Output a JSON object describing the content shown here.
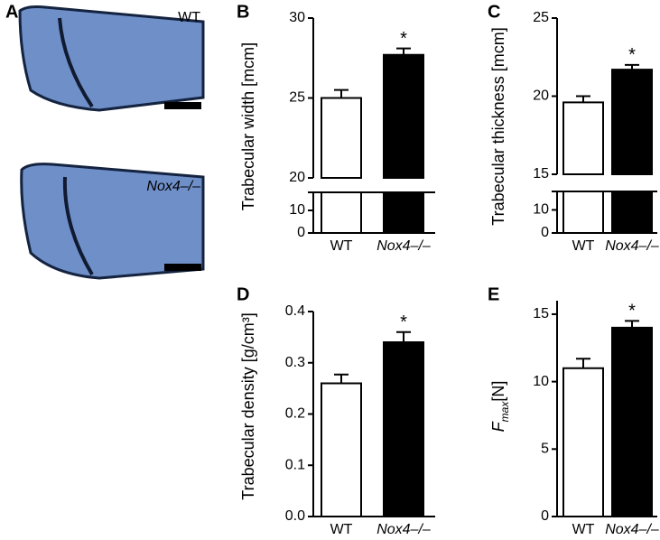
{
  "panel_a": {
    "label": "A",
    "images": [
      {
        "label": "WT"
      },
      {
        "label": "Nox4–/–"
      }
    ]
  },
  "chart_data": [
    {
      "panel": "B",
      "type": "bar",
      "y_label": "Trabecular width [mcm]",
      "categories": [
        "WT",
        "Nox4–/–"
      ],
      "values": [
        25.0,
        27.7
      ],
      "errors": [
        0.5,
        0.4
      ],
      "colors": [
        "#ffffff",
        "#000000"
      ],
      "annotations": [
        "*"
      ],
      "ylim": [
        20,
        30
      ],
      "yticks": [
        20,
        25,
        30
      ],
      "axis_break": {
        "ylim": [
          0,
          18
        ],
        "yticks": [
          0,
          10
        ]
      }
    },
    {
      "panel": "C",
      "type": "bar",
      "y_label": "Trabecular thickness [mcm]",
      "categories": [
        "WT",
        "Nox4–/–"
      ],
      "values": [
        19.6,
        21.7
      ],
      "errors": [
        0.4,
        0.3
      ],
      "colors": [
        "#ffffff",
        "#000000"
      ],
      "annotations": [
        "*"
      ],
      "ylim": [
        15,
        25
      ],
      "yticks": [
        15,
        20,
        25
      ],
      "axis_break": {
        "ylim": [
          0,
          18
        ],
        "yticks": [
          0,
          10
        ]
      }
    },
    {
      "panel": "D",
      "type": "bar",
      "y_label": "Trabecular density [g/cm³]",
      "categories": [
        "WT",
        "Nox4–/–"
      ],
      "values": [
        0.26,
        0.34
      ],
      "errors": [
        0.017,
        0.02
      ],
      "colors": [
        "#ffffff",
        "#000000"
      ],
      "annotations": [
        "*"
      ],
      "ylim": [
        0,
        0.4
      ],
      "yticks": [
        {
          "value": 0,
          "label": "0.0"
        },
        0.1,
        0.2,
        0.3,
        0.4
      ]
    },
    {
      "panel": "E",
      "type": "bar",
      "y_label": "F",
      "y_label_subscript": "max",
      "y_label_unit": "[N]",
      "categories": [
        "WT",
        "Nox4–/–"
      ],
      "values": [
        11.0,
        14.0
      ],
      "errors": [
        0.7,
        0.5
      ],
      "colors": [
        "#ffffff",
        "#000000"
      ],
      "annotations": [
        "*"
      ],
      "ylim": [
        0,
        16
      ],
      "yticks": [
        0,
        5,
        10,
        15
      ]
    }
  ]
}
